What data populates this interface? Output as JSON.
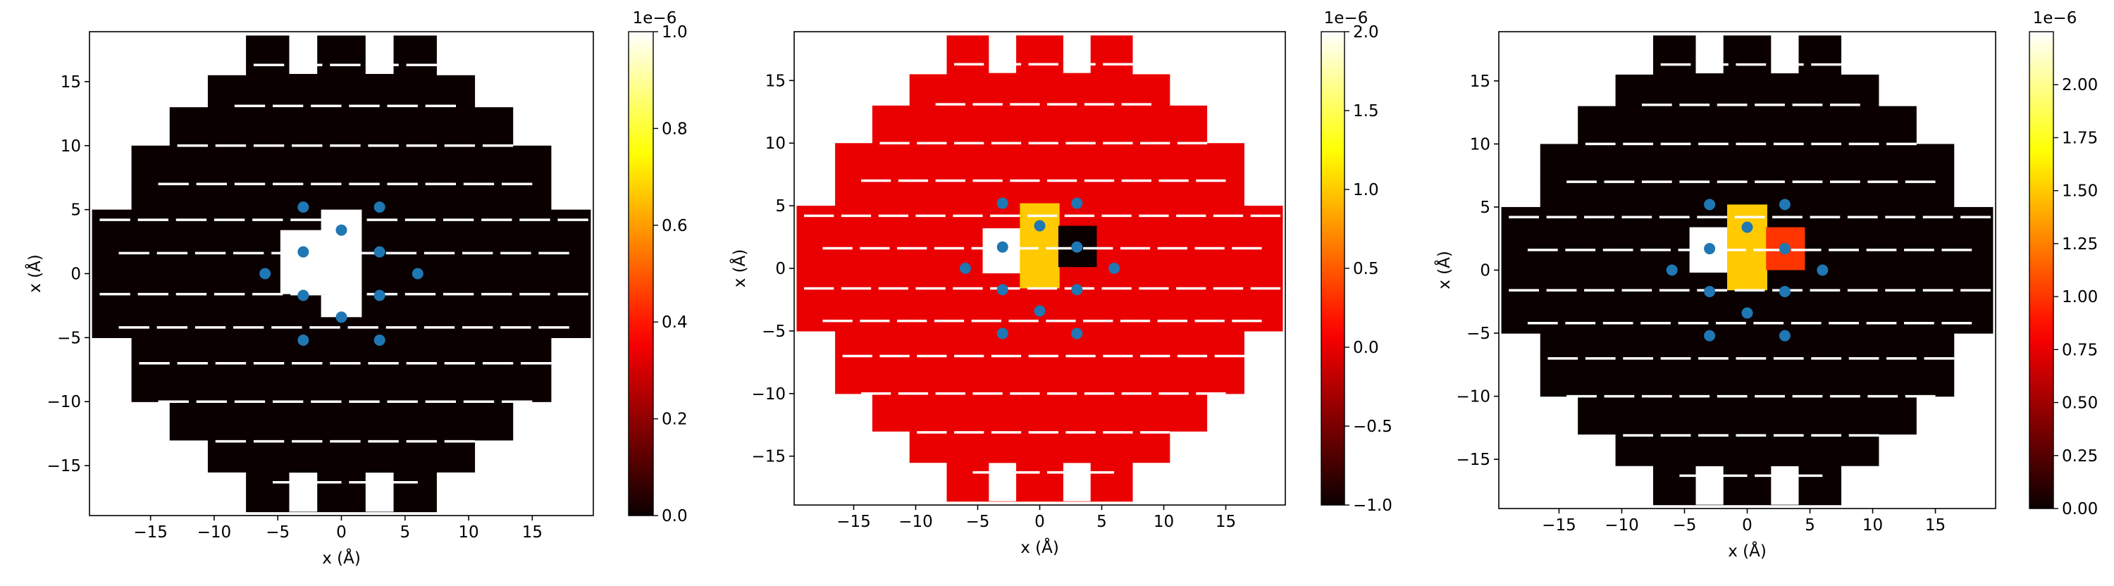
{
  "chart_data": [
    {
      "type": "heatmap",
      "xlabel": "x (Å)",
      "ylabel": "x (Å)",
      "xlim": [
        -19.8,
        19.8
      ],
      "ylim": [
        -18.9,
        18.9
      ],
      "x_ticks": [
        -15,
        -10,
        -5,
        0,
        5,
        10,
        15
      ],
      "y_ticks": [
        -15,
        -10,
        -5,
        0,
        5,
        10,
        15
      ],
      "x_tick_labels": [
        "−15",
        "−10",
        "−5",
        "0",
        "5",
        "10",
        "15"
      ],
      "y_tick_labels": [
        "−15",
        "−10",
        "−5",
        "0",
        "5",
        "10",
        "15"
      ],
      "colormap": "hot",
      "background_value": 0.0,
      "patch_values": {
        "white_left": 1.0,
        "white_right": 1.0
      },
      "colorbar": {
        "min": 0.0,
        "max": 1.0,
        "exponent": "1e−6",
        "ticks": [
          0.0,
          0.2,
          0.4,
          0.6,
          0.8,
          1.0
        ],
        "tick_labels": [
          "0.0",
          "0.2",
          "0.4",
          "0.6",
          "0.8",
          "1.0"
        ]
      },
      "points": [
        [
          -3,
          5.2
        ],
        [
          3,
          5.2
        ],
        [
          0,
          3.4
        ],
        [
          -3,
          1.7
        ],
        [
          3,
          1.7
        ],
        [
          -6,
          0
        ],
        [
          6,
          0
        ],
        [
          -3,
          -1.7
        ],
        [
          3,
          -1.7
        ],
        [
          0,
          -3.4
        ],
        [
          -3,
          -5.2
        ],
        [
          3,
          -5.2
        ]
      ]
    },
    {
      "type": "heatmap",
      "xlabel": "x (Å)",
      "ylabel": "x (Å)",
      "xlim": [
        -19.8,
        19.8
      ],
      "ylim": [
        -18.9,
        18.9
      ],
      "x_ticks": [
        -15,
        -10,
        -5,
        0,
        5,
        10,
        15
      ],
      "y_ticks": [
        -15,
        -10,
        -5,
        0,
        5,
        10,
        15
      ],
      "x_tick_labels": [
        "−15",
        "−10",
        "−5",
        "0",
        "5",
        "10",
        "15"
      ],
      "y_tick_labels": [
        "−15",
        "−10",
        "−5",
        "0",
        "5",
        "10",
        "15"
      ],
      "colormap": "hot",
      "background_value": 0.0,
      "patch_values": {
        "white_left": 2.0,
        "orange": 1.0,
        "black_right": -1.0
      },
      "colorbar": {
        "min": -1.0,
        "max": 2.0,
        "exponent": "1e−6",
        "ticks": [
          -1.0,
          -0.5,
          0.0,
          0.5,
          1.0,
          1.5,
          2.0
        ],
        "tick_labels": [
          "−1.0",
          "−0.5",
          "0.0",
          "0.5",
          "1.0",
          "1.5",
          "2.0"
        ]
      },
      "points": [
        [
          -3,
          5.2
        ],
        [
          3,
          5.2
        ],
        [
          0,
          3.4
        ],
        [
          -3,
          1.7
        ],
        [
          3,
          1.7
        ],
        [
          -6,
          0
        ],
        [
          6,
          0
        ],
        [
          -3,
          -1.7
        ],
        [
          3,
          -1.7
        ],
        [
          0,
          -3.4
        ],
        [
          -3,
          -5.2
        ],
        [
          3,
          -5.2
        ]
      ]
    },
    {
      "type": "heatmap",
      "xlabel": "x (Å)",
      "ylabel": "x (Å)",
      "xlim": [
        -19.8,
        19.8
      ],
      "ylim": [
        -18.9,
        18.9
      ],
      "x_ticks": [
        -15,
        -10,
        -5,
        0,
        5,
        10,
        15
      ],
      "y_ticks": [
        -15,
        -10,
        -5,
        0,
        5,
        10,
        15
      ],
      "x_tick_labels": [
        "−15",
        "−10",
        "−5",
        "0",
        "5",
        "10",
        "15"
      ],
      "y_tick_labels": [
        "−15",
        "−10",
        "−5",
        "0",
        "5",
        "10",
        "15"
      ],
      "colormap": "hot",
      "background_value": 0.0,
      "patch_values": {
        "white_left": 2.25,
        "orange": 1.5,
        "red_right": 1.0
      },
      "colorbar": {
        "min": 0.0,
        "max": 2.25,
        "exponent": "1e−6",
        "ticks": [
          0.0,
          0.25,
          0.5,
          0.75,
          1.0,
          1.25,
          1.5,
          1.75,
          2.0
        ],
        "tick_labels": [
          "0.00",
          "0.25",
          "0.50",
          "0.75",
          "1.00",
          "1.25",
          "1.50",
          "1.75",
          "2.00"
        ]
      },
      "points": [
        [
          -3,
          5.2
        ],
        [
          3,
          5.2
        ],
        [
          0,
          3.4
        ],
        [
          -3,
          1.7
        ],
        [
          3,
          1.7
        ],
        [
          -6,
          0
        ],
        [
          6,
          0
        ],
        [
          -3,
          -1.7
        ],
        [
          3,
          -1.7
        ],
        [
          0,
          -3.4
        ],
        [
          -3,
          -5.2
        ],
        [
          3,
          -5.2
        ]
      ]
    }
  ],
  "colors": {
    "marker": "#1f77b4",
    "gap": "#ffffff"
  }
}
